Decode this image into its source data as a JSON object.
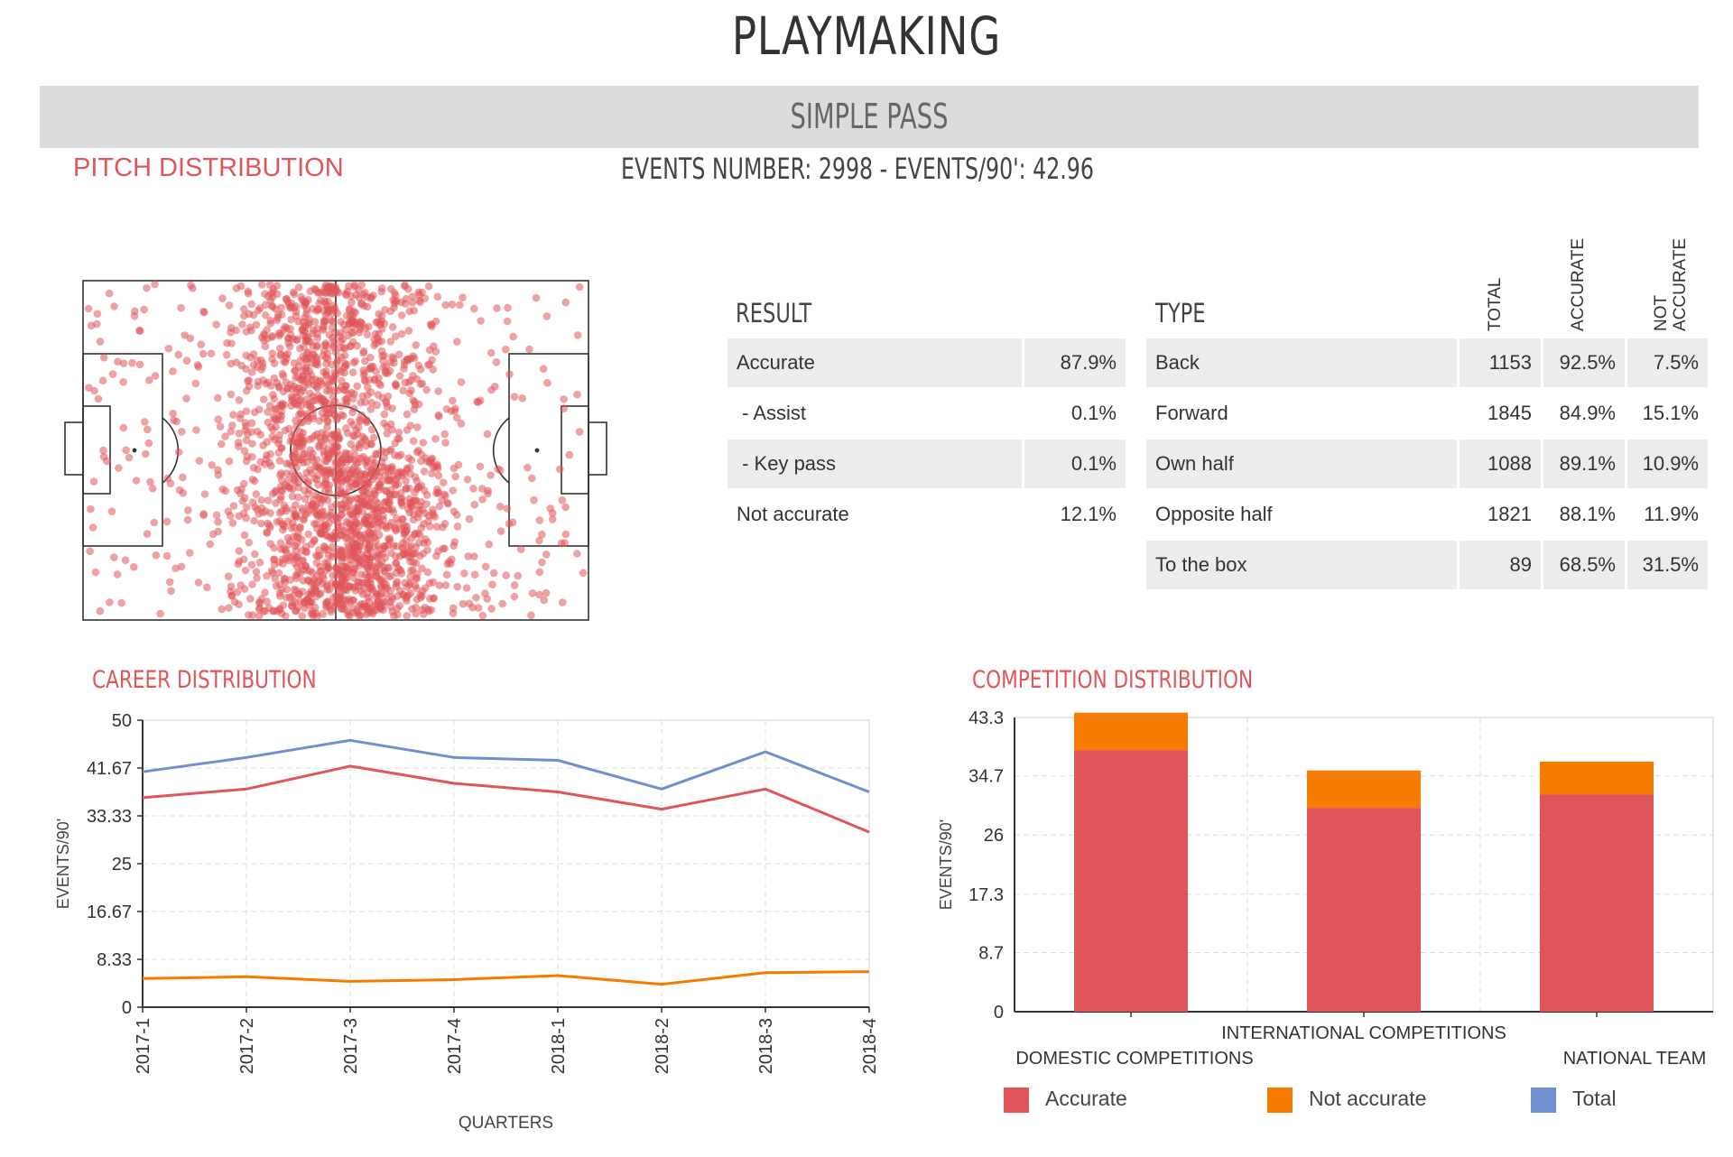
{
  "page": {
    "title": "PLAYMAKING",
    "section": "SIMPLE PASS",
    "pitch_heading": "PITCH DISTRIBUTION",
    "events_summary": "EVENTS NUMBER: 2998  -  EVENTS/90': 42.96"
  },
  "result_table": {
    "header": "RESULT",
    "rows": [
      {
        "label": "Accurate",
        "value": "87.9%"
      },
      {
        "label": " - Assist",
        "value": "0.1%"
      },
      {
        "label": " - Key pass",
        "value": "0.1%"
      },
      {
        "label": "Not accurate",
        "value": "12.1%"
      }
    ]
  },
  "type_table": {
    "header": "TYPE",
    "columns": [
      "TOTAL",
      "ACCURATE",
      "NOT ACCURATE"
    ],
    "rows": [
      {
        "label": "Back",
        "total": "1153",
        "accurate": "92.5%",
        "not_accurate": "7.5%"
      },
      {
        "label": "Forward",
        "total": "1845",
        "accurate": "84.9%",
        "not_accurate": "15.1%"
      },
      {
        "label": "Own half",
        "total": "1088",
        "accurate": "89.1%",
        "not_accurate": "10.9%"
      },
      {
        "label": "Opposite half",
        "total": "1821",
        "accurate": "88.1%",
        "not_accurate": "11.9%"
      },
      {
        "label": "To the box",
        "total": "89",
        "accurate": "68.5%",
        "not_accurate": "31.5%"
      }
    ]
  },
  "colors": {
    "accent": "#e05559",
    "accurate": "#e05559",
    "not_accurate": "#f57c00",
    "total": "#6f8fcf",
    "band": "#dcdcdc"
  },
  "chart_data": [
    {
      "type": "line",
      "title": "CAREER DISTRIBUTION",
      "xlabel": "QUARTERS",
      "ylabel": "EVENTS/90'",
      "categories": [
        "2017-1",
        "2017-2",
        "2017-3",
        "2017-4",
        "2018-1",
        "2018-2",
        "2018-3",
        "2018-4"
      ],
      "yticks": [
        "0",
        "8.33",
        "16.67",
        "25",
        "33.33",
        "41.67",
        "50"
      ],
      "ylim": [
        0,
        50
      ],
      "grid": true,
      "series": [
        {
          "name": "Total",
          "color": "#6f8fcf",
          "values": [
            41,
            43.5,
            46.5,
            43.5,
            43,
            38,
            44.5,
            37.5
          ]
        },
        {
          "name": "Accurate",
          "color": "#e05559",
          "values": [
            36.5,
            38,
            42,
            39,
            37.5,
            34.5,
            38,
            30.5
          ]
        },
        {
          "name": "Not accurate",
          "color": "#f57c00",
          "values": [
            5,
            5.3,
            4.5,
            4.8,
            5.5,
            4,
            6,
            6.2
          ]
        }
      ]
    },
    {
      "type": "bar",
      "stacked": true,
      "title": "COMPETITION DISTRIBUTION",
      "ylabel": "EVENTS/90'",
      "categories": [
        "DOMESTIC COMPETITIONS",
        "INTERNATIONAL COMPETITIONS",
        "NATIONAL TEAM"
      ],
      "yticks": [
        "0",
        "8.7",
        "17.3",
        "26",
        "34.7",
        "43.3"
      ],
      "ylim": [
        0,
        43.3
      ],
      "grid": true,
      "series": [
        {
          "name": "Accurate",
          "color": "#e05559",
          "values": [
            38.5,
            30,
            32
          ]
        },
        {
          "name": "Not accurate",
          "color": "#f57c00",
          "values": [
            5.5,
            5.5,
            4.8
          ]
        }
      ],
      "legend": [
        {
          "name": "Accurate",
          "color": "#e05559"
        },
        {
          "name": "Not accurate",
          "color": "#f57c00"
        },
        {
          "name": "Total",
          "color": "#6f8fcf"
        }
      ]
    }
  ]
}
